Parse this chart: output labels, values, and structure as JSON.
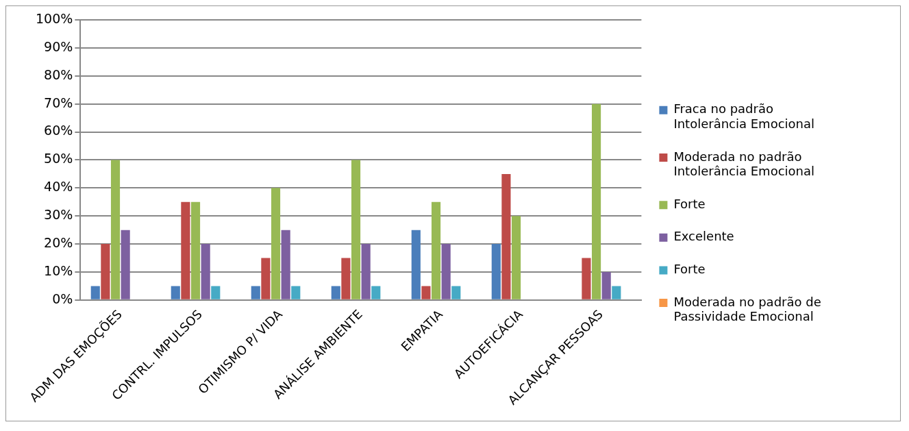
{
  "chart_data": {
    "type": "bar",
    "categories": [
      "ADM DAS EMOÇÕES",
      "CONTRL. IMPULSOS",
      "OTIMISMO P/ VIDA",
      "ANÁLISE AMBIENTE",
      "EMPATIA",
      "AUTOEFICÁCIA",
      "ALCANÇAR PESSOAS"
    ],
    "series": [
      {
        "name": "Fraca no padrão Intolerância Emocional",
        "color": "#4a7ebb",
        "values": [
          5,
          5,
          5,
          5,
          25,
          20,
          0
        ]
      },
      {
        "name": "Moderada no padrão Intolerância Emocional",
        "color": "#be4b48",
        "values": [
          20,
          35,
          15,
          15,
          5,
          45,
          15
        ]
      },
      {
        "name": "Forte",
        "color": "#98b954",
        "values": [
          50,
          35,
          40,
          50,
          35,
          30,
          70
        ]
      },
      {
        "name": "Excelente",
        "color": "#7d60a0",
        "values": [
          25,
          20,
          25,
          20,
          20,
          0,
          10
        ]
      },
      {
        "name": "Forte",
        "color": "#46aac5",
        "values": [
          0,
          5,
          5,
          5,
          5,
          0,
          5
        ]
      },
      {
        "name": "Moderada no padrão de Passividade Emocional",
        "color": "#f79646",
        "values": [
          0,
          0,
          0,
          0,
          0,
          0,
          0
        ]
      }
    ],
    "ylim": [
      0,
      100
    ],
    "yticks": [
      {
        "value": 0,
        "label": "0%"
      },
      {
        "value": 10,
        "label": "10%"
      },
      {
        "value": 20,
        "label": "20%"
      },
      {
        "value": 30,
        "label": "30%"
      },
      {
        "value": 40,
        "label": "40%"
      },
      {
        "value": 50,
        "label": "50%"
      },
      {
        "value": 60,
        "label": "60%"
      },
      {
        "value": 70,
        "label": "70%"
      },
      {
        "value": 80,
        "label": "80%"
      },
      {
        "value": 90,
        "label": "90%"
      },
      {
        "value": 100,
        "label": "100%"
      }
    ],
    "grid": "y",
    "legend": "right"
  }
}
